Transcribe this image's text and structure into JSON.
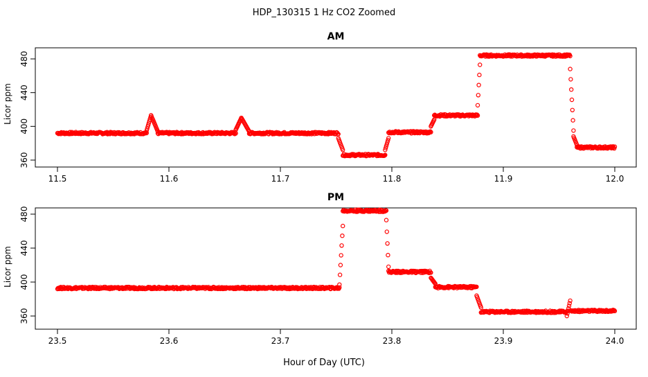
{
  "figure_title": "HDP_130315  1 Hz CO2 Zoomed",
  "shared_xlabel": "Hour of Day (UTC)",
  "point_color": "#ff0000",
  "chart_data": [
    {
      "type": "scatter",
      "title": "AM",
      "xlabel": "Hour of Day (UTC)",
      "ylabel": "Licor ppm",
      "xlim": [
        11.5,
        12.0
      ],
      "ylim": [
        360,
        490
      ],
      "xticks": [
        "11.5",
        "11.6",
        "11.7",
        "11.8",
        "11.9",
        "12.0"
      ],
      "xtick_values": [
        11.5,
        11.6,
        11.7,
        11.8,
        11.9,
        12.0
      ],
      "yticks": [
        "360",
        "400",
        "440",
        "480"
      ],
      "ytick_values": [
        360,
        400,
        440,
        480
      ],
      "grid": false,
      "marker": "open-circle",
      "color": "#ff0000",
      "x_step": 0.0005,
      "segments": [
        {
          "x0": 11.5,
          "x1": 11.58,
          "y": 392
        },
        {
          "x0": 11.58,
          "x1": 11.584,
          "y0": 395,
          "y1": 413
        },
        {
          "x0": 11.584,
          "x1": 11.59,
          "y0": 413,
          "y1": 394
        },
        {
          "x0": 11.59,
          "x1": 11.66,
          "y": 392
        },
        {
          "x0": 11.66,
          "x1": 11.665,
          "y0": 396,
          "y1": 410
        },
        {
          "x0": 11.665,
          "x1": 11.672,
          "y0": 410,
          "y1": 394
        },
        {
          "x0": 11.672,
          "x1": 11.752,
          "y": 392
        },
        {
          "x0": 11.752,
          "x1": 11.756,
          "y0": 386,
          "y1": 372
        },
        {
          "x0": 11.756,
          "x1": 11.794,
          "y": 366
        },
        {
          "x0": 11.794,
          "x1": 11.797,
          "y0": 372,
          "y1": 386
        },
        {
          "x0": 11.797,
          "x1": 11.835,
          "y": 393
        },
        {
          "x0": 11.835,
          "x1": 11.838,
          "y0": 400,
          "y1": 408
        },
        {
          "x0": 11.838,
          "x1": 11.877,
          "y": 413
        },
        {
          "x0": 11.877,
          "x1": 11.879,
          "y0": 425,
          "y1": 473
        },
        {
          "x0": 11.879,
          "x1": 11.96,
          "y": 484
        },
        {
          "x0": 11.96,
          "x1": 11.963,
          "y0": 468,
          "y1": 395
        },
        {
          "x0": 11.963,
          "x1": 11.966,
          "y0": 388,
          "y1": 378
        },
        {
          "x0": 11.966,
          "x1": 12.0,
          "y": 375
        }
      ]
    },
    {
      "type": "scatter",
      "title": "PM",
      "xlabel": "Hour of Day (UTC)",
      "ylabel": "Licor ppm",
      "xlim": [
        23.5,
        24.0
      ],
      "ylim": [
        355,
        490
      ],
      "xticks": [
        "23.5",
        "23.6",
        "23.7",
        "23.8",
        "23.9",
        "24.0"
      ],
      "xtick_values": [
        23.5,
        23.6,
        23.7,
        23.8,
        23.9,
        24.0
      ],
      "yticks": [
        "360",
        "400",
        "440",
        "480"
      ],
      "ytick_values": [
        360,
        400,
        440,
        480
      ],
      "grid": false,
      "marker": "open-circle",
      "color": "#ff0000",
      "x_step": 0.0005,
      "segments": [
        {
          "x0": 23.5,
          "x1": 23.753,
          "y": 393
        },
        {
          "x0": 23.753,
          "x1": 23.756,
          "y0": 397,
          "y1": 466
        },
        {
          "x0": 23.756,
          "x1": 23.795,
          "y": 484
        },
        {
          "x0": 23.795,
          "x1": 23.797,
          "y0": 473,
          "y1": 418
        },
        {
          "x0": 23.797,
          "x1": 23.835,
          "y": 412
        },
        {
          "x0": 23.835,
          "x1": 23.839,
          "y0": 405,
          "y1": 398
        },
        {
          "x0": 23.839,
          "x1": 23.876,
          "y": 394
        },
        {
          "x0": 23.876,
          "x1": 23.88,
          "y0": 384,
          "y1": 370
        },
        {
          "x0": 23.88,
          "x1": 23.957,
          "y": 365
        },
        {
          "x0": 23.957,
          "x1": 23.96,
          "y0": 360,
          "y1": 378
        },
        {
          "x0": 23.96,
          "x1": 24.0,
          "y": 366
        }
      ]
    }
  ]
}
